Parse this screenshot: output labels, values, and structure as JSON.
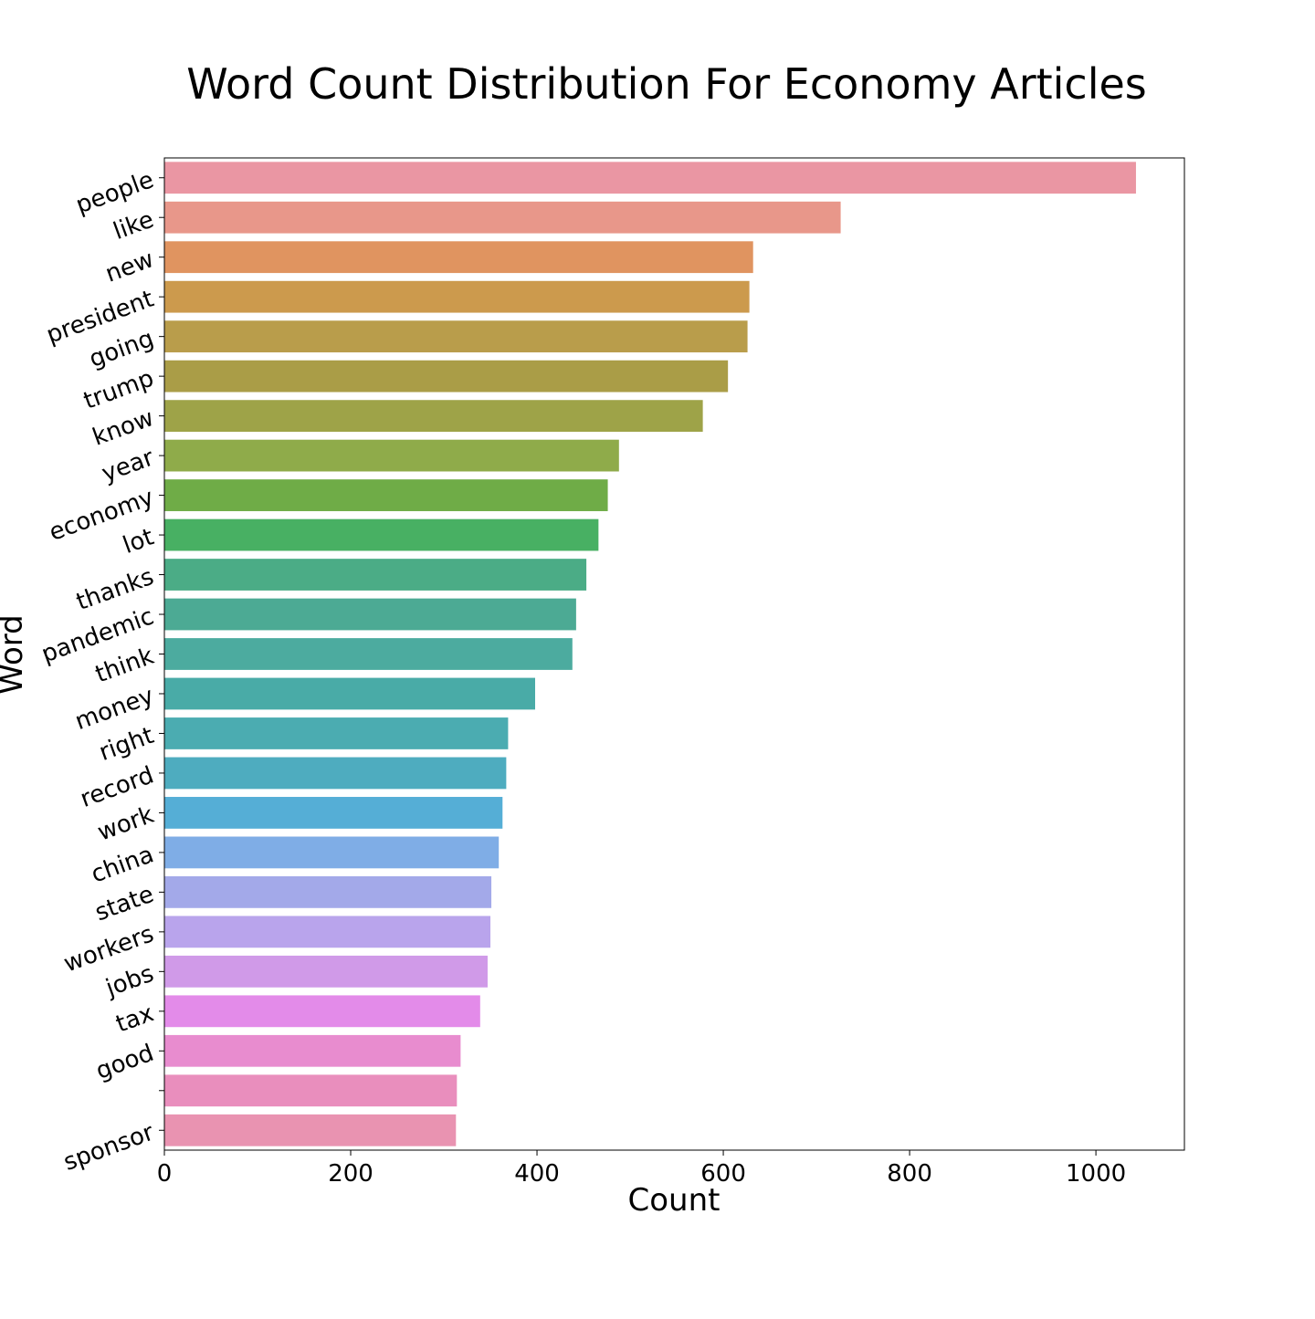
{
  "chart_data": {
    "type": "bar",
    "orientation": "horizontal",
    "title": "Word Count Distribution For Economy Articles",
    "xlabel": "Count",
    "ylabel": "Word",
    "xlim": [
      0,
      1095
    ],
    "xticks": [
      0,
      200,
      400,
      600,
      800,
      1000
    ],
    "grid": false,
    "categories": [
      "people",
      "like",
      "new",
      "president",
      "going",
      "trump",
      "know",
      "year",
      "economy",
      "lot",
      "thanks",
      "pandemic",
      "think",
      "money",
      "right",
      "record",
      "work",
      "china",
      "state",
      "workers",
      "jobs",
      "tax",
      "good",
      "",
      "sponsor"
    ],
    "values": [
      1043,
      726,
      632,
      628,
      626,
      605,
      578,
      488,
      476,
      466,
      453,
      442,
      438,
      398,
      369,
      367,
      363,
      359,
      351,
      350,
      347,
      339,
      318,
      314,
      313
    ],
    "colors": [
      "#ea96a3",
      "#e8978a",
      "#e09460",
      "#cc9a4d",
      "#b99d4b",
      "#aa9d47",
      "#9ea348",
      "#8fab4a",
      "#6fac47",
      "#48b063",
      "#4bac86",
      "#4caa94",
      "#4cab9f",
      "#49aba7",
      "#4bacb1",
      "#4eacbf",
      "#55aed6",
      "#7fade6",
      "#a3a9e9",
      "#b9a4ec",
      "#d09ae8",
      "#e38be9",
      "#e88ccf",
      "#e98ebd",
      "#e993b1"
    ]
  }
}
